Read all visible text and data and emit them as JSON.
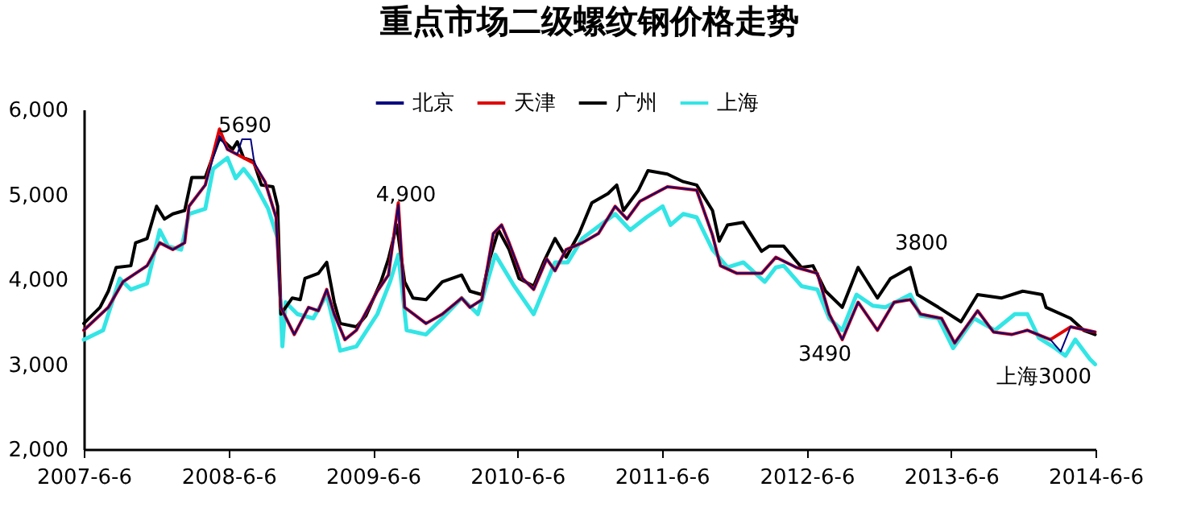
{
  "chart_data": {
    "type": "line",
    "title": "重点市场二级螺纹钢价格走势",
    "xlim": [
      "2007-06-06",
      "2014-06-06"
    ],
    "xticks": [
      {
        "value": "2007-06-06",
        "label": "2007-6-6"
      },
      {
        "value": "2008-06-06",
        "label": "2008-6-6"
      },
      {
        "value": "2009-06-06",
        "label": "2009-6-6"
      },
      {
        "value": "2010-06-06",
        "label": "2010-6-6"
      },
      {
        "value": "2011-06-06",
        "label": "2011-6-6"
      },
      {
        "value": "2012-06-06",
        "label": "2012-6-6"
      },
      {
        "value": "2013-06-06",
        "label": "2013-6-6"
      },
      {
        "value": "2014-06-06",
        "label": "2014-6-6"
      }
    ],
    "ylim": [
      2000,
      6000
    ],
    "yticks": [
      {
        "value": 2000,
        "label": "2,000"
      },
      {
        "value": 3000,
        "label": "3,000"
      },
      {
        "value": 4000,
        "label": "4,000"
      },
      {
        "value": 5000,
        "label": "5,000"
      },
      {
        "value": 6000,
        "label": "6,000"
      }
    ],
    "grid": false,
    "legend": "top",
    "marker": "none",
    "line_style": "solid",
    "series": [
      {
        "name": "北京",
        "color": "#000080",
        "x": [
          "2007-06-06",
          "2007-08-07",
          "2007-09-13",
          "2007-11-13",
          "2007-12-15",
          "2008-01-17",
          "2008-02-16",
          "2008-02-27",
          "2008-04-08",
          "2008-05-14",
          "2008-06-03",
          "2008-06-28",
          "2008-07-10",
          "2008-08-01",
          "2008-08-10",
          "2008-09-06",
          "2008-10-04",
          "2008-10-16",
          "2008-11-19",
          "2008-12-25",
          "2009-01-19",
          "2009-02-09",
          "2009-02-28",
          "2009-03-27",
          "2009-04-25",
          "2009-06-17",
          "2009-07-15",
          "2009-08-09",
          "2009-08-25",
          "2009-10-18",
          "2009-11-28",
          "2010-01-16",
          "2010-02-06",
          "2010-03-08",
          "2010-04-06",
          "2010-04-27",
          "2010-05-16",
          "2010-06-19",
          "2010-07-17",
          "2010-08-19",
          "2010-09-09",
          "2010-10-07",
          "2010-11-17",
          "2010-12-28",
          "2011-02-08",
          "2011-03-10",
          "2011-04-12",
          "2011-06-20",
          "2011-09-02",
          "2011-10-12",
          "2011-11-01",
          "2011-12-13",
          "2012-02-13",
          "2012-03-20",
          "2012-05-11",
          "2012-07-03",
          "2012-08-02",
          "2012-09-04",
          "2012-10-14",
          "2012-12-02",
          "2013-01-13",
          "2013-02-23",
          "2013-03-21",
          "2013-05-13",
          "2013-06-15",
          "2013-08-12",
          "2013-09-21",
          "2013-11-06",
          "2013-12-16",
          "2014-02-12",
          "2014-03-10",
          "2014-04-04",
          "2014-05-15",
          "2014-06-05"
        ],
        "values": [
          3400,
          3670,
          3970,
          4160,
          4430,
          4350,
          4430,
          4860,
          5110,
          5690,
          5530,
          5470,
          5650,
          5650,
          5370,
          5150,
          4730,
          3670,
          3350,
          3670,
          3630,
          3880,
          3590,
          3290,
          3400,
          3860,
          4050,
          4880,
          3670,
          3480,
          3590,
          3780,
          3670,
          3760,
          4540,
          4640,
          4430,
          4010,
          3880,
          4240,
          4100,
          4350,
          4430,
          4540,
          4860,
          4710,
          4920,
          5090,
          5050,
          4520,
          4160,
          4070,
          4070,
          4260,
          4140,
          4070,
          3590,
          3290,
          3730,
          3400,
          3730,
          3760,
          3590,
          3540,
          3250,
          3630,
          3380,
          3350,
          3400,
          3290,
          3150,
          3440,
          3400,
          3380
        ]
      },
      {
        "name": "天津",
        "color": "#e00000",
        "x": [
          "2007-06-06",
          "2007-08-07",
          "2007-09-13",
          "2007-11-13",
          "2007-12-15",
          "2008-01-17",
          "2008-02-16",
          "2008-02-27",
          "2008-04-08",
          "2008-05-14",
          "2008-06-03",
          "2008-06-28",
          "2008-08-08",
          "2008-09-06",
          "2008-10-04",
          "2008-10-16",
          "2008-11-19",
          "2008-12-25",
          "2009-01-19",
          "2009-02-09",
          "2009-02-28",
          "2009-03-27",
          "2009-04-25",
          "2009-06-17",
          "2009-07-15",
          "2009-08-09",
          "2009-08-25",
          "2009-10-18",
          "2009-11-28",
          "2010-01-16",
          "2010-02-06",
          "2010-03-08",
          "2010-04-06",
          "2010-04-27",
          "2010-05-16",
          "2010-06-19",
          "2010-07-17",
          "2010-08-19",
          "2010-09-09",
          "2010-10-07",
          "2010-11-17",
          "2010-12-28",
          "2011-02-08",
          "2011-03-10",
          "2011-04-12",
          "2011-06-20",
          "2011-09-02",
          "2011-10-12",
          "2011-11-01",
          "2011-12-13",
          "2012-02-13",
          "2012-03-20",
          "2012-05-11",
          "2012-07-03",
          "2012-08-02",
          "2012-09-04",
          "2012-10-14",
          "2012-12-02",
          "2013-01-13",
          "2013-02-23",
          "2013-03-21",
          "2013-05-13",
          "2013-06-15",
          "2013-08-12",
          "2013-09-21",
          "2013-11-06",
          "2013-12-16",
          "2014-02-12",
          "2014-04-04",
          "2014-05-15",
          "2014-06-05"
        ],
        "values": [
          3400,
          3670,
          3970,
          4160,
          4430,
          4350,
          4430,
          4860,
          5110,
          5770,
          5530,
          5470,
          5370,
          5150,
          4730,
          3670,
          3350,
          3670,
          3630,
          3880,
          3590,
          3290,
          3400,
          3860,
          4050,
          4900,
          3670,
          3480,
          3590,
          3780,
          3670,
          3760,
          4540,
          4640,
          4430,
          4010,
          3880,
          4240,
          4100,
          4350,
          4430,
          4540,
          4860,
          4710,
          4920,
          5090,
          5050,
          4520,
          4160,
          4070,
          4070,
          4260,
          4140,
          4070,
          3590,
          3290,
          3730,
          3400,
          3730,
          3760,
          3590,
          3540,
          3250,
          3630,
          3380,
          3350,
          3400,
          3290,
          3440,
          3400,
          3380
        ]
      },
      {
        "name": "广州",
        "color": "#000000",
        "x": [
          "2007-06-06",
          "2007-07-17",
          "2007-08-07",
          "2007-08-27",
          "2007-10-03",
          "2007-10-15",
          "2007-11-13",
          "2007-12-07",
          "2007-12-27",
          "2008-01-17",
          "2008-02-16",
          "2008-03-05",
          "2008-04-08",
          "2008-05-14",
          "2008-05-26",
          "2008-06-16",
          "2008-06-28",
          "2008-07-14",
          "2008-08-08",
          "2008-08-28",
          "2008-09-26",
          "2008-10-08",
          "2008-10-16",
          "2008-11-14",
          "2008-12-04",
          "2008-12-16",
          "2009-01-19",
          "2009-02-09",
          "2009-02-28",
          "2009-03-15",
          "2009-04-25",
          "2009-05-19",
          "2009-06-26",
          "2009-07-15",
          "2009-08-05",
          "2009-08-25",
          "2009-09-15",
          "2009-10-18",
          "2009-11-28",
          "2010-01-16",
          "2010-02-06",
          "2010-03-08",
          "2010-03-28",
          "2010-04-19",
          "2010-05-16",
          "2010-06-10",
          "2010-07-17",
          "2010-08-11",
          "2010-09-09",
          "2010-10-07",
          "2010-11-09",
          "2010-12-11",
          "2011-01-21",
          "2011-02-12",
          "2011-03-01",
          "2011-04-08",
          "2011-05-02",
          "2011-06-20",
          "2011-07-30",
          "2011-09-02",
          "2011-10-12",
          "2011-10-29",
          "2011-11-19",
          "2011-12-29",
          "2012-02-13",
          "2012-03-03",
          "2012-04-09",
          "2012-05-24",
          "2012-06-22",
          "2012-07-24",
          "2012-09-04",
          "2012-10-14",
          "2012-12-02",
          "2013-01-04",
          "2013-02-23",
          "2013-03-13",
          "2013-05-05",
          "2013-07-01",
          "2013-08-12",
          "2013-10-12",
          "2013-12-04",
          "2014-01-22",
          "2014-02-01",
          "2014-04-04",
          "2014-05-07",
          "2014-06-05"
        ],
        "values": [
          3480,
          3670,
          3860,
          4140,
          4160,
          4430,
          4480,
          4860,
          4710,
          4770,
          4810,
          5200,
          5200,
          5660,
          5620,
          5530,
          5620,
          5430,
          5390,
          5110,
          5090,
          4860,
          3590,
          3780,
          3760,
          4010,
          4070,
          4200,
          3730,
          3480,
          3440,
          3570,
          3970,
          4240,
          4640,
          3970,
          3780,
          3760,
          3970,
          4050,
          3860,
          3820,
          4240,
          4580,
          4350,
          4010,
          3920,
          4200,
          4480,
          4260,
          4540,
          4900,
          5010,
          5110,
          4810,
          5050,
          5280,
          5240,
          5150,
          5110,
          4810,
          4450,
          4640,
          4670,
          4330,
          4390,
          4390,
          4140,
          4160,
          3860,
          3670,
          4140,
          3780,
          4010,
          4140,
          3820,
          3670,
          3500,
          3820,
          3780,
          3860,
          3820,
          3670,
          3540,
          3400,
          3350
        ]
      },
      {
        "name": "上海",
        "color": "#33e5e5",
        "x": [
          "2007-06-06",
          "2007-07-25",
          "2007-09-05",
          "2007-10-03",
          "2007-11-13",
          "2007-12-15",
          "2008-01-05",
          "2008-02-07",
          "2008-02-27",
          "2008-04-08",
          "2008-04-28",
          "2008-06-03",
          "2008-06-24",
          "2008-07-14",
          "2008-08-08",
          "2008-09-14",
          "2008-10-08",
          "2008-10-20",
          "2008-10-28",
          "2008-11-27",
          "2009-01-06",
          "2009-02-09",
          "2009-03-15",
          "2009-04-25",
          "2009-06-17",
          "2009-07-19",
          "2009-08-09",
          "2009-08-30",
          "2009-10-18",
          "2009-11-28",
          "2010-01-16",
          "2010-02-26",
          "2010-04-11",
          "2010-05-29",
          "2010-07-17",
          "2010-09-09",
          "2010-10-11",
          "2010-11-17",
          "2011-02-08",
          "2011-03-18",
          "2011-04-28",
          "2011-06-08",
          "2011-06-28",
          "2011-07-30",
          "2011-09-02",
          "2011-10-12",
          "2011-11-19",
          "2011-12-29",
          "2012-02-21",
          "2012-03-20",
          "2012-04-09",
          "2012-05-24",
          "2012-07-03",
          "2012-08-02",
          "2012-09-04",
          "2012-10-10",
          "2012-11-20",
          "2012-12-22",
          "2013-02-23",
          "2013-03-21",
          "2013-05-05",
          "2013-06-11",
          "2013-08-03",
          "2013-09-25",
          "2013-11-14",
          "2013-12-16",
          "2014-01-14",
          "2014-02-24",
          "2014-03-22",
          "2014-04-16",
          "2014-05-23",
          "2014-06-05"
        ],
        "values": [
          3290,
          3400,
          4010,
          3880,
          3950,
          4580,
          4390,
          4350,
          4770,
          4830,
          5300,
          5430,
          5190,
          5300,
          5150,
          4830,
          4480,
          3210,
          3730,
          3590,
          3540,
          3820,
          3160,
          3210,
          3590,
          3970,
          4290,
          3400,
          3350,
          3540,
          3780,
          3590,
          4290,
          3920,
          3590,
          4200,
          4200,
          4480,
          4770,
          4580,
          4730,
          4860,
          4640,
          4770,
          4730,
          4350,
          4140,
          4200,
          3970,
          4140,
          4160,
          3920,
          3880,
          3540,
          3400,
          3820,
          3690,
          3670,
          3820,
          3570,
          3540,
          3190,
          3540,
          3400,
          3590,
          3590,
          3310,
          3190,
          3100,
          3290,
          3060,
          3000
        ]
      }
    ],
    "annotations": [
      "5690",
      "4,900",
      "3800",
      "3490",
      "上海3000"
    ]
  }
}
